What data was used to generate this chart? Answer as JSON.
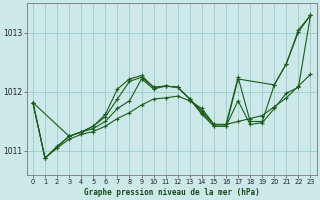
{
  "background_color": "#cce8e8",
  "grid_color": "#99cccc",
  "line_color": "#1a5c1a",
  "title": "Graphe pression niveau de la mer (hPa)",
  "xlim": [
    -0.5,
    23.5
  ],
  "ylim": [
    1010.6,
    1013.5
  ],
  "yticks": [
    1011,
    1012,
    1013
  ],
  "xticks": [
    0,
    1,
    2,
    3,
    4,
    5,
    6,
    7,
    8,
    9,
    10,
    11,
    12,
    13,
    14,
    15,
    16,
    17,
    18,
    19,
    20,
    21,
    22,
    23
  ],
  "series": [
    {
      "x": [
        0,
        1,
        2,
        3,
        4,
        5,
        6,
        7,
        8,
        9,
        10,
        11,
        12,
        13,
        14,
        15,
        16,
        17,
        18,
        19,
        20,
        21,
        22,
        23
      ],
      "y": [
        1011.82,
        1010.88,
        1011.05,
        1011.2,
        1011.28,
        1011.33,
        1011.42,
        1011.55,
        1011.65,
        1011.78,
        1011.88,
        1011.9,
        1011.93,
        1011.85,
        1011.72,
        1011.45,
        1011.45,
        1011.5,
        1011.55,
        1011.6,
        1011.75,
        1011.9,
        1012.1,
        1012.3
      ]
    },
    {
      "x": [
        0,
        1,
        2,
        3,
        4,
        5,
        6,
        7,
        8,
        9,
        10,
        11,
        12,
        13,
        14,
        15,
        16,
        17,
        18,
        19,
        20,
        21,
        22,
        23
      ],
      "y": [
        1011.82,
        1010.88,
        1011.08,
        1011.25,
        1011.32,
        1011.38,
        1011.5,
        1011.72,
        1011.85,
        1012.22,
        1012.05,
        1012.1,
        1012.08,
        1011.88,
        1011.65,
        1011.42,
        1011.42,
        1011.85,
        1011.45,
        1011.48,
        1011.72,
        1011.98,
        1012.08,
        1013.3
      ]
    },
    {
      "x": [
        0,
        1,
        3,
        4,
        5,
        6,
        7,
        8,
        9,
        10,
        11,
        12,
        14,
        15,
        16,
        17,
        18,
        19,
        20,
        21,
        22,
        23
      ],
      "y": [
        1011.82,
        1010.88,
        1011.25,
        1011.32,
        1011.42,
        1011.58,
        1011.88,
        1012.18,
        1012.25,
        1012.08,
        1012.1,
        1012.08,
        1011.68,
        1011.45,
        1011.45,
        1012.25,
        1011.5,
        1011.5,
        1012.12,
        1012.48,
        1013.05,
        1013.3
      ]
    },
    {
      "x": [
        0,
        3,
        4,
        5,
        6,
        7,
        8,
        9,
        10,
        11,
        12,
        13,
        14,
        15,
        16,
        17,
        20,
        21,
        22,
        23
      ],
      "y": [
        1011.82,
        1011.25,
        1011.32,
        1011.42,
        1011.62,
        1012.05,
        1012.22,
        1012.28,
        1012.08,
        1012.1,
        1012.08,
        1011.88,
        1011.62,
        1011.42,
        1011.42,
        1012.22,
        1012.12,
        1012.48,
        1013.02,
        1013.3
      ]
    }
  ]
}
